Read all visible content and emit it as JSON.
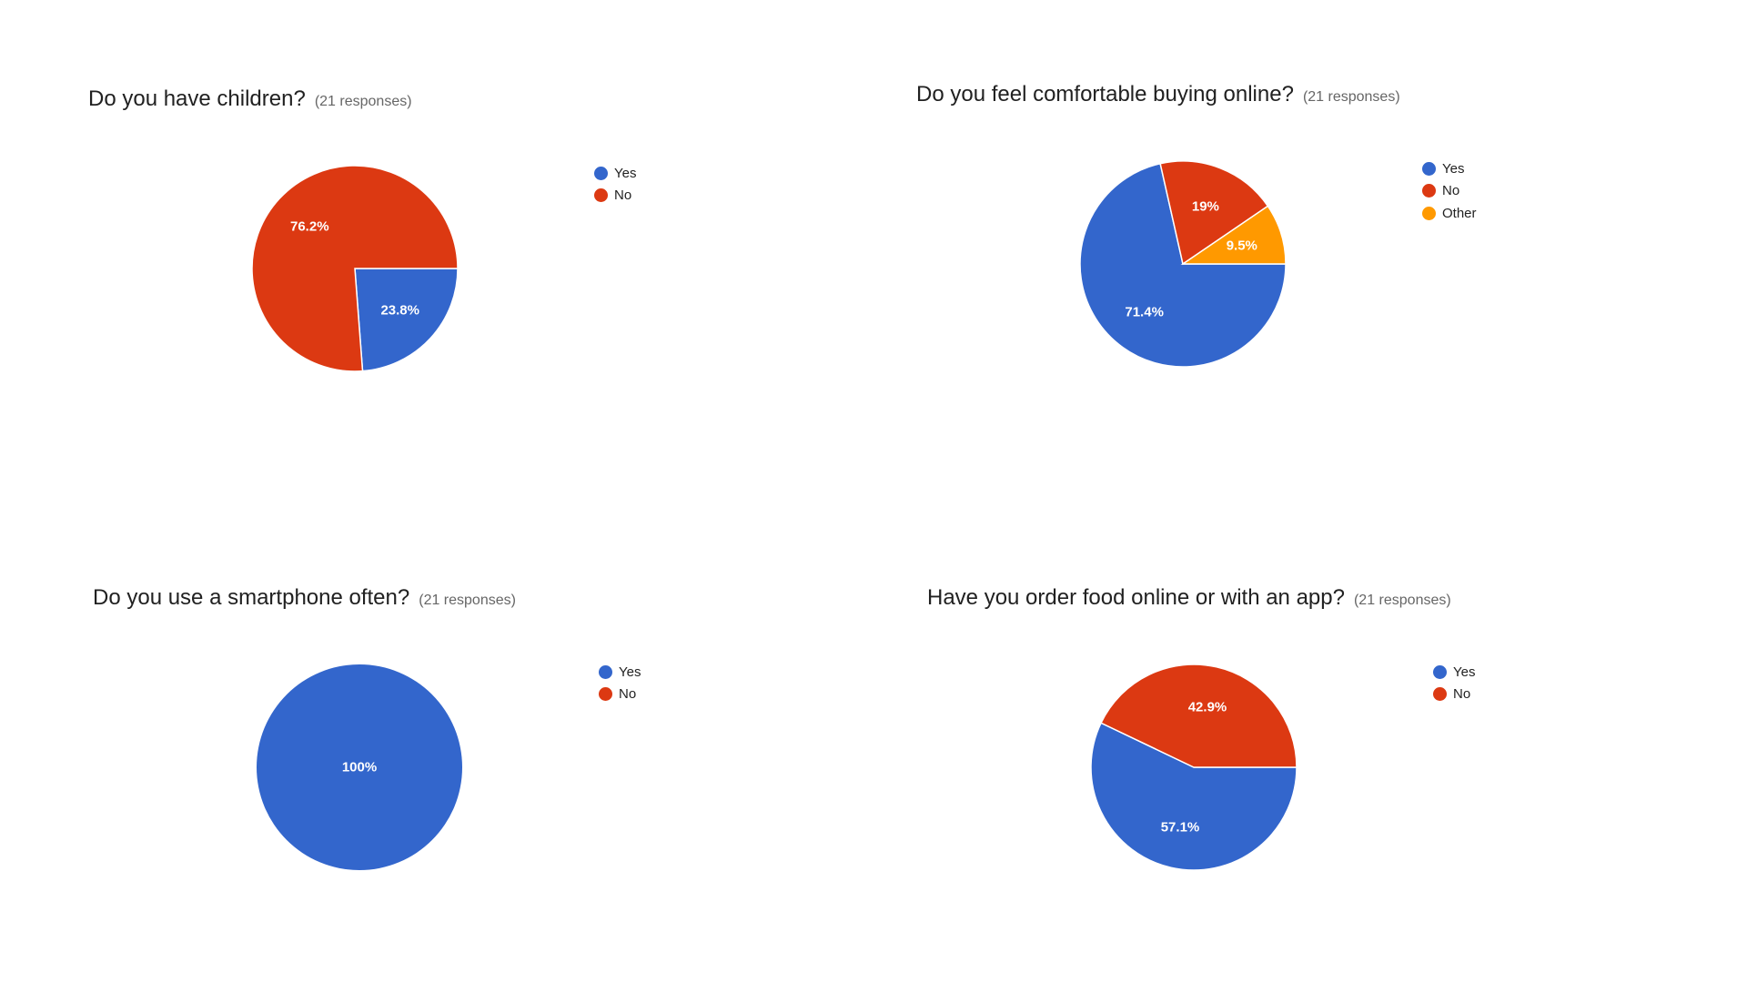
{
  "colors": {
    "yes": "#3366cc",
    "no": "#dc3912",
    "other": "#ff9900"
  },
  "chart_data": [
    {
      "type": "pie",
      "title": "Do you have children?",
      "subtitle": "(21 responses)",
      "categories": [
        "Yes",
        "No"
      ],
      "values": [
        23.8,
        76.2
      ],
      "labels": [
        "23.8%",
        "76.2%"
      ],
      "colors": [
        "#3366cc",
        "#dc3912"
      ],
      "legend_position": "right"
    },
    {
      "type": "pie",
      "title": "Do you feel comfortable buying online?",
      "subtitle": "(21 responses)",
      "categories": [
        "Yes",
        "No",
        "Other"
      ],
      "values": [
        71.4,
        19,
        9.5
      ],
      "labels": [
        "71.4%",
        "19%",
        "9.5%"
      ],
      "colors": [
        "#3366cc",
        "#dc3912",
        "#ff9900"
      ],
      "legend_position": "right"
    },
    {
      "type": "pie",
      "title": "Do you use a smartphone often?",
      "subtitle": "(21 responses)",
      "categories": [
        "Yes",
        "No"
      ],
      "values": [
        100,
        0
      ],
      "labels": [
        "100%",
        ""
      ],
      "colors": [
        "#3366cc",
        "#dc3912"
      ],
      "legend_position": "right"
    },
    {
      "type": "pie",
      "title": "Have you order food online or with an app?",
      "subtitle": "(21 responses)",
      "categories": [
        "Yes",
        "No"
      ],
      "values": [
        57.1,
        42.9
      ],
      "labels": [
        "57.1%",
        "42.9%"
      ],
      "colors": [
        "#3366cc",
        "#dc3912"
      ],
      "legend_position": "right"
    }
  ]
}
